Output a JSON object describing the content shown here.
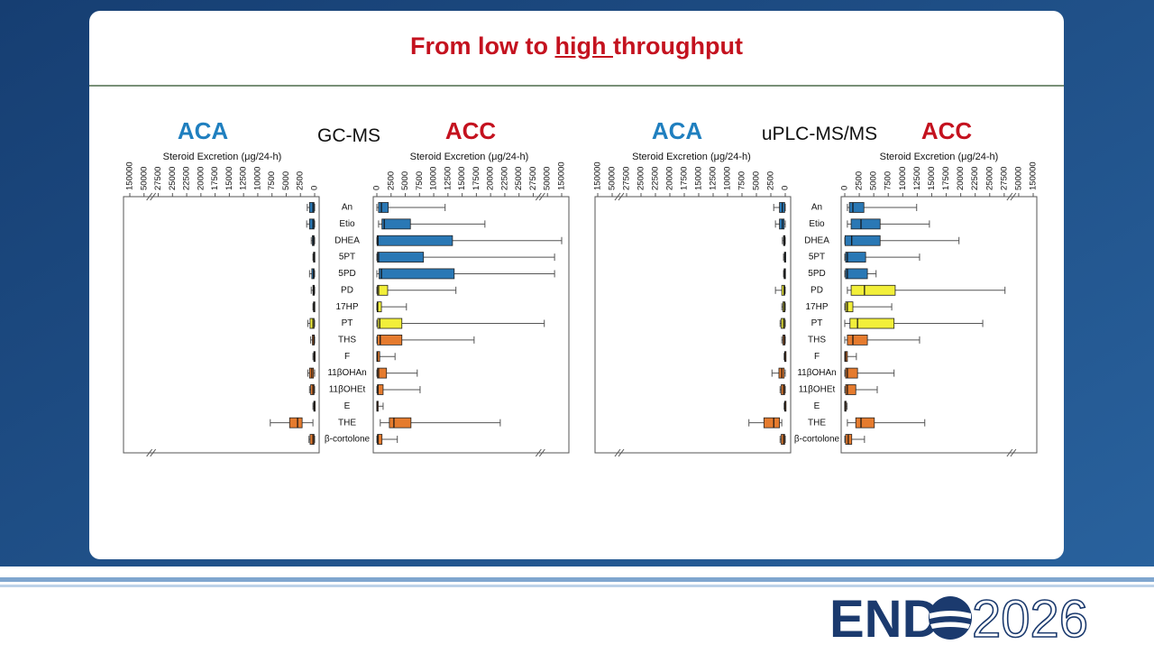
{
  "slide": {
    "title_parts": [
      "From low to ",
      "high ",
      "throughput"
    ],
    "methods": [
      "GC-MS",
      "uPLC-MS/MS"
    ],
    "logo_text": "END",
    "logo_year": "2026"
  },
  "chart_data": [
    {
      "type": "box",
      "title": "ACA",
      "xlabel": "Steroid Excretion (μg/24-h)",
      "reversed": true,
      "xlim": [
        0,
        150000
      ],
      "xticks": [
        0,
        2500,
        5000,
        7500,
        10000,
        12500,
        15000,
        17500,
        20000,
        22500,
        25000,
        27500,
        50000,
        150000
      ],
      "colors": [
        "#2a78b5",
        "#2a78b5",
        "#2a78b5",
        "#2a78b5",
        "#2a78b5",
        "#f2ef3a",
        "#f2ef3a",
        "#f2ef3a",
        "#e57b2e",
        "#e57b2e",
        "#e57b2e",
        "#e57b2e",
        "#e57b2e",
        "#e57b2e",
        "#e57b2e"
      ],
      "boxes": [
        {
          "min": 0,
          "q1": 100,
          "median": 300,
          "q3": 900,
          "max": 1300
        },
        {
          "min": 0,
          "q1": 100,
          "median": 300,
          "q3": 900,
          "max": 1400
        },
        {
          "min": 0,
          "q1": 100,
          "median": 200,
          "q3": 400,
          "max": 600
        },
        {
          "min": 0,
          "q1": 50,
          "median": 100,
          "q3": 200,
          "max": 300
        },
        {
          "min": 0,
          "q1": 100,
          "median": 200,
          "q3": 500,
          "max": 900
        },
        {
          "min": 0,
          "q1": 50,
          "median": 150,
          "q3": 300,
          "max": 600
        },
        {
          "min": 0,
          "q1": 50,
          "median": 100,
          "q3": 200,
          "max": 300
        },
        {
          "min": 0,
          "q1": 100,
          "median": 300,
          "q3": 800,
          "max": 1200
        },
        {
          "min": 0,
          "q1": 50,
          "median": 150,
          "q3": 400,
          "max": 700
        },
        {
          "min": 0,
          "q1": 20,
          "median": 50,
          "q3": 150,
          "max": 300
        },
        {
          "min": 0,
          "q1": 200,
          "median": 500,
          "q3": 900,
          "max": 1200
        },
        {
          "min": 0,
          "q1": 100,
          "median": 300,
          "q3": 700,
          "max": 900
        },
        {
          "min": 0,
          "q1": 20,
          "median": 50,
          "q3": 150,
          "max": 300
        },
        {
          "min": 300,
          "q1": 2200,
          "median": 3000,
          "q3": 4400,
          "max": 7800
        },
        {
          "min": 0,
          "q1": 100,
          "median": 300,
          "q3": 800,
          "max": 1000
        }
      ]
    },
    {
      "type": "box",
      "title": "ACC",
      "xlabel": "Steroid Excretion (μg/24-h)",
      "reversed": false,
      "xlim": [
        0,
        150000
      ],
      "xticks": [
        0,
        2500,
        5000,
        7500,
        10000,
        12500,
        15000,
        17500,
        20000,
        22500,
        25000,
        27500,
        50000,
        150000
      ],
      "categories": [
        "An",
        "Etio",
        "DHEA",
        "5PT",
        "5PD",
        "PD",
        "17HP",
        "PT",
        "THS",
        "F",
        "11βOHAn",
        "11βOHEt",
        "E",
        "THE",
        "β-cortolone"
      ],
      "colors": [
        "#2a78b5",
        "#2a78b5",
        "#2a78b5",
        "#2a78b5",
        "#2a78b5",
        "#f2ef3a",
        "#f2ef3a",
        "#f2ef3a",
        "#e57b2e",
        "#e57b2e",
        "#e57b2e",
        "#e57b2e",
        "#e57b2e",
        "#e57b2e",
        "#e57b2e"
      ],
      "boxes": [
        {
          "min": 0,
          "q1": 300,
          "median": 800,
          "q3": 2000,
          "max": 12000
        },
        {
          "min": 300,
          "q1": 900,
          "median": 1300,
          "q3": 5900,
          "max": 19000
        },
        {
          "min": 0,
          "q1": 50,
          "median": 200,
          "q3": 13300,
          "max": 150000
        },
        {
          "min": 0,
          "q1": 100,
          "median": 300,
          "q3": 8200,
          "max": 100000
        },
        {
          "min": 0,
          "q1": 400,
          "median": 800,
          "q3": 13600,
          "max": 100000
        },
        {
          "min": 0,
          "q1": 100,
          "median": 300,
          "q3": 1900,
          "max": 13900
        },
        {
          "min": 0,
          "q1": 50,
          "median": 150,
          "q3": 800,
          "max": 5200
        },
        {
          "min": 0,
          "q1": 150,
          "median": 500,
          "q3": 4400,
          "max": 45000
        },
        {
          "min": 0,
          "q1": 100,
          "median": 600,
          "q3": 4400,
          "max": 17100
        },
        {
          "min": 0,
          "q1": 0,
          "median": 100,
          "q3": 500,
          "max": 3200
        },
        {
          "min": 0,
          "q1": 100,
          "median": 300,
          "q3": 1700,
          "max": 7100
        },
        {
          "min": 0,
          "q1": 100,
          "median": 200,
          "q3": 1100,
          "max": 7600
        },
        {
          "min": 0,
          "q1": 0,
          "median": 50,
          "q3": 150,
          "max": 1100
        },
        {
          "min": 600,
          "q1": 2200,
          "median": 3000,
          "q3": 6000,
          "max": 21700
        },
        {
          "min": 0,
          "q1": 100,
          "median": 200,
          "q3": 900,
          "max": 3600
        }
      ]
    },
    {
      "type": "box",
      "title": "ACA",
      "xlabel": "Steroid Excretion (μg/24-h)",
      "reversed": true,
      "xlim": [
        0,
        150000
      ],
      "xticks": [
        0,
        2500,
        5000,
        7500,
        10000,
        12500,
        15000,
        17500,
        20000,
        22500,
        25000,
        27500,
        50000,
        150000
      ],
      "colors": [
        "#2a78b5",
        "#2a78b5",
        "#2a78b5",
        "#2a78b5",
        "#2a78b5",
        "#f2ef3a",
        "#f2ef3a",
        "#f2ef3a",
        "#e57b2e",
        "#e57b2e",
        "#e57b2e",
        "#e57b2e",
        "#e57b2e",
        "#e57b2e",
        "#e57b2e"
      ],
      "boxes": [
        {
          "min": 0,
          "q1": 100,
          "median": 500,
          "q3": 1000,
          "max": 2000
        },
        {
          "min": 0,
          "q1": 200,
          "median": 500,
          "q3": 1000,
          "max": 1700
        },
        {
          "min": 0,
          "q1": 50,
          "median": 150,
          "q3": 300,
          "max": 500
        },
        {
          "min": 0,
          "q1": 20,
          "median": 50,
          "q3": 150,
          "max": 300
        },
        {
          "min": 0,
          "q1": 50,
          "median": 100,
          "q3": 200,
          "max": 300
        },
        {
          "min": 0,
          "q1": 100,
          "median": 200,
          "q3": 600,
          "max": 1700
        },
        {
          "min": 0,
          "q1": 50,
          "median": 150,
          "q3": 400,
          "max": 600
        },
        {
          "min": 0,
          "q1": 100,
          "median": 300,
          "q3": 700,
          "max": 900
        },
        {
          "min": 0,
          "q1": 50,
          "median": 150,
          "q3": 400,
          "max": 600
        },
        {
          "min": 0,
          "q1": 20,
          "median": 50,
          "q3": 100,
          "max": 200
        },
        {
          "min": 0,
          "q1": 200,
          "median": 600,
          "q3": 1100,
          "max": 2300
        },
        {
          "min": 0,
          "q1": 100,
          "median": 300,
          "q3": 700,
          "max": 900
        },
        {
          "min": 0,
          "q1": 20,
          "median": 50,
          "q3": 100,
          "max": 200
        },
        {
          "min": 600,
          "q1": 1000,
          "median": 2000,
          "q3": 3700,
          "max": 6300
        },
        {
          "min": 0,
          "q1": 100,
          "median": 300,
          "q3": 700,
          "max": 900
        }
      ]
    },
    {
      "type": "box",
      "title": "ACC",
      "xlabel": "Steroid Excretion (μg/24-h)",
      "reversed": false,
      "xlim": [
        0,
        150000
      ],
      "xticks": [
        0,
        2500,
        5000,
        7500,
        10000,
        12500,
        15000,
        17500,
        20000,
        22500,
        25000,
        27500,
        50000,
        150000
      ],
      "categories": [
        "An",
        "Etio",
        "DHEA",
        "5PT",
        "5PD",
        "PD",
        "17HP",
        "PT",
        "THS",
        "F",
        "11βOHAn",
        "11βOHEt",
        "E",
        "THE",
        "β-cortolone"
      ],
      "colors": [
        "#2a78b5",
        "#2a78b5",
        "#2a78b5",
        "#2a78b5",
        "#2a78b5",
        "#f2ef3a",
        "#f2ef3a",
        "#f2ef3a",
        "#e57b2e",
        "#e57b2e",
        "#e57b2e",
        "#e57b2e",
        "#e57b2e",
        "#e57b2e",
        "#e57b2e"
      ],
      "boxes": [
        {
          "min": 450,
          "q1": 800,
          "median": 1400,
          "q3": 3300,
          "max": 12400
        },
        {
          "min": 450,
          "q1": 1100,
          "median": 2800,
          "q3": 6100,
          "max": 14600
        },
        {
          "min": 0,
          "q1": 50,
          "median": 1200,
          "q3": 6100,
          "max": 19700
        },
        {
          "min": 0,
          "q1": 150,
          "median": 450,
          "q3": 3600,
          "max": 12900
        },
        {
          "min": 0,
          "q1": 150,
          "median": 450,
          "q3": 3900,
          "max": 5400
        },
        {
          "min": 450,
          "q1": 1100,
          "median": 3400,
          "q3": 8700,
          "max": 28700
        },
        {
          "min": 0,
          "q1": 150,
          "median": 450,
          "q3": 1400,
          "max": 8100
        },
        {
          "min": 0,
          "q1": 900,
          "median": 2200,
          "q3": 8500,
          "max": 23800
        },
        {
          "min": 0,
          "q1": 450,
          "median": 1400,
          "q3": 3900,
          "max": 12900
        },
        {
          "min": 0,
          "q1": 0,
          "median": 150,
          "q3": 450,
          "max": 2000
        },
        {
          "min": 0,
          "q1": 150,
          "median": 450,
          "q3": 2200,
          "max": 8500
        },
        {
          "min": 0,
          "q1": 150,
          "median": 450,
          "q3": 1900,
          "max": 5600
        },
        {
          "min": 0,
          "q1": 0,
          "median": 50,
          "q3": 200,
          "max": 400
        },
        {
          "min": 450,
          "q1": 1900,
          "median": 2800,
          "q3": 5100,
          "max": 13800
        },
        {
          "min": 0,
          "q1": 150,
          "median": 600,
          "q3": 1200,
          "max": 3400
        }
      ]
    }
  ]
}
